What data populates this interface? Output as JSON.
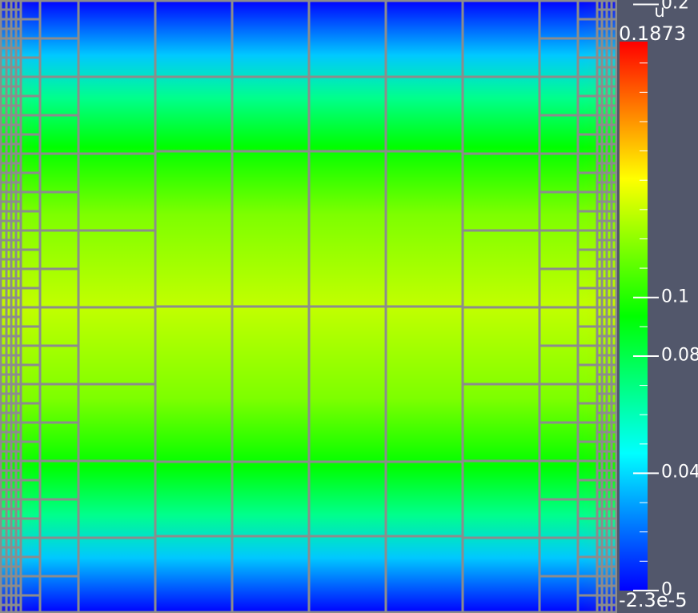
{
  "chart_data": {
    "type": "heatmap",
    "title": "",
    "colorbar": {
      "title": "u",
      "range_label_max": "0.1873",
      "range_label_min": "-2.3e-5",
      "range": [
        -2.3e-05,
        0.1873
      ],
      "tick_values": [
        0,
        0.04,
        0.08,
        0.1,
        0.2
      ],
      "tick_labels": [
        "0",
        "0.04",
        "0.08",
        "0.1",
        "0.2"
      ],
      "colormap": [
        "#0000ff",
        "#00ffff",
        "#00ff00",
        "#ffff00",
        "#ff0000"
      ]
    },
    "field": "u",
    "description_values": {
      "boundary_value": 0,
      "center_value": 0.12
    },
    "mesh": "adaptive quadtree, refined toward left and right boundaries",
    "mesh_line_color": "#8c8c8c",
    "background_color": "#52576b"
  }
}
